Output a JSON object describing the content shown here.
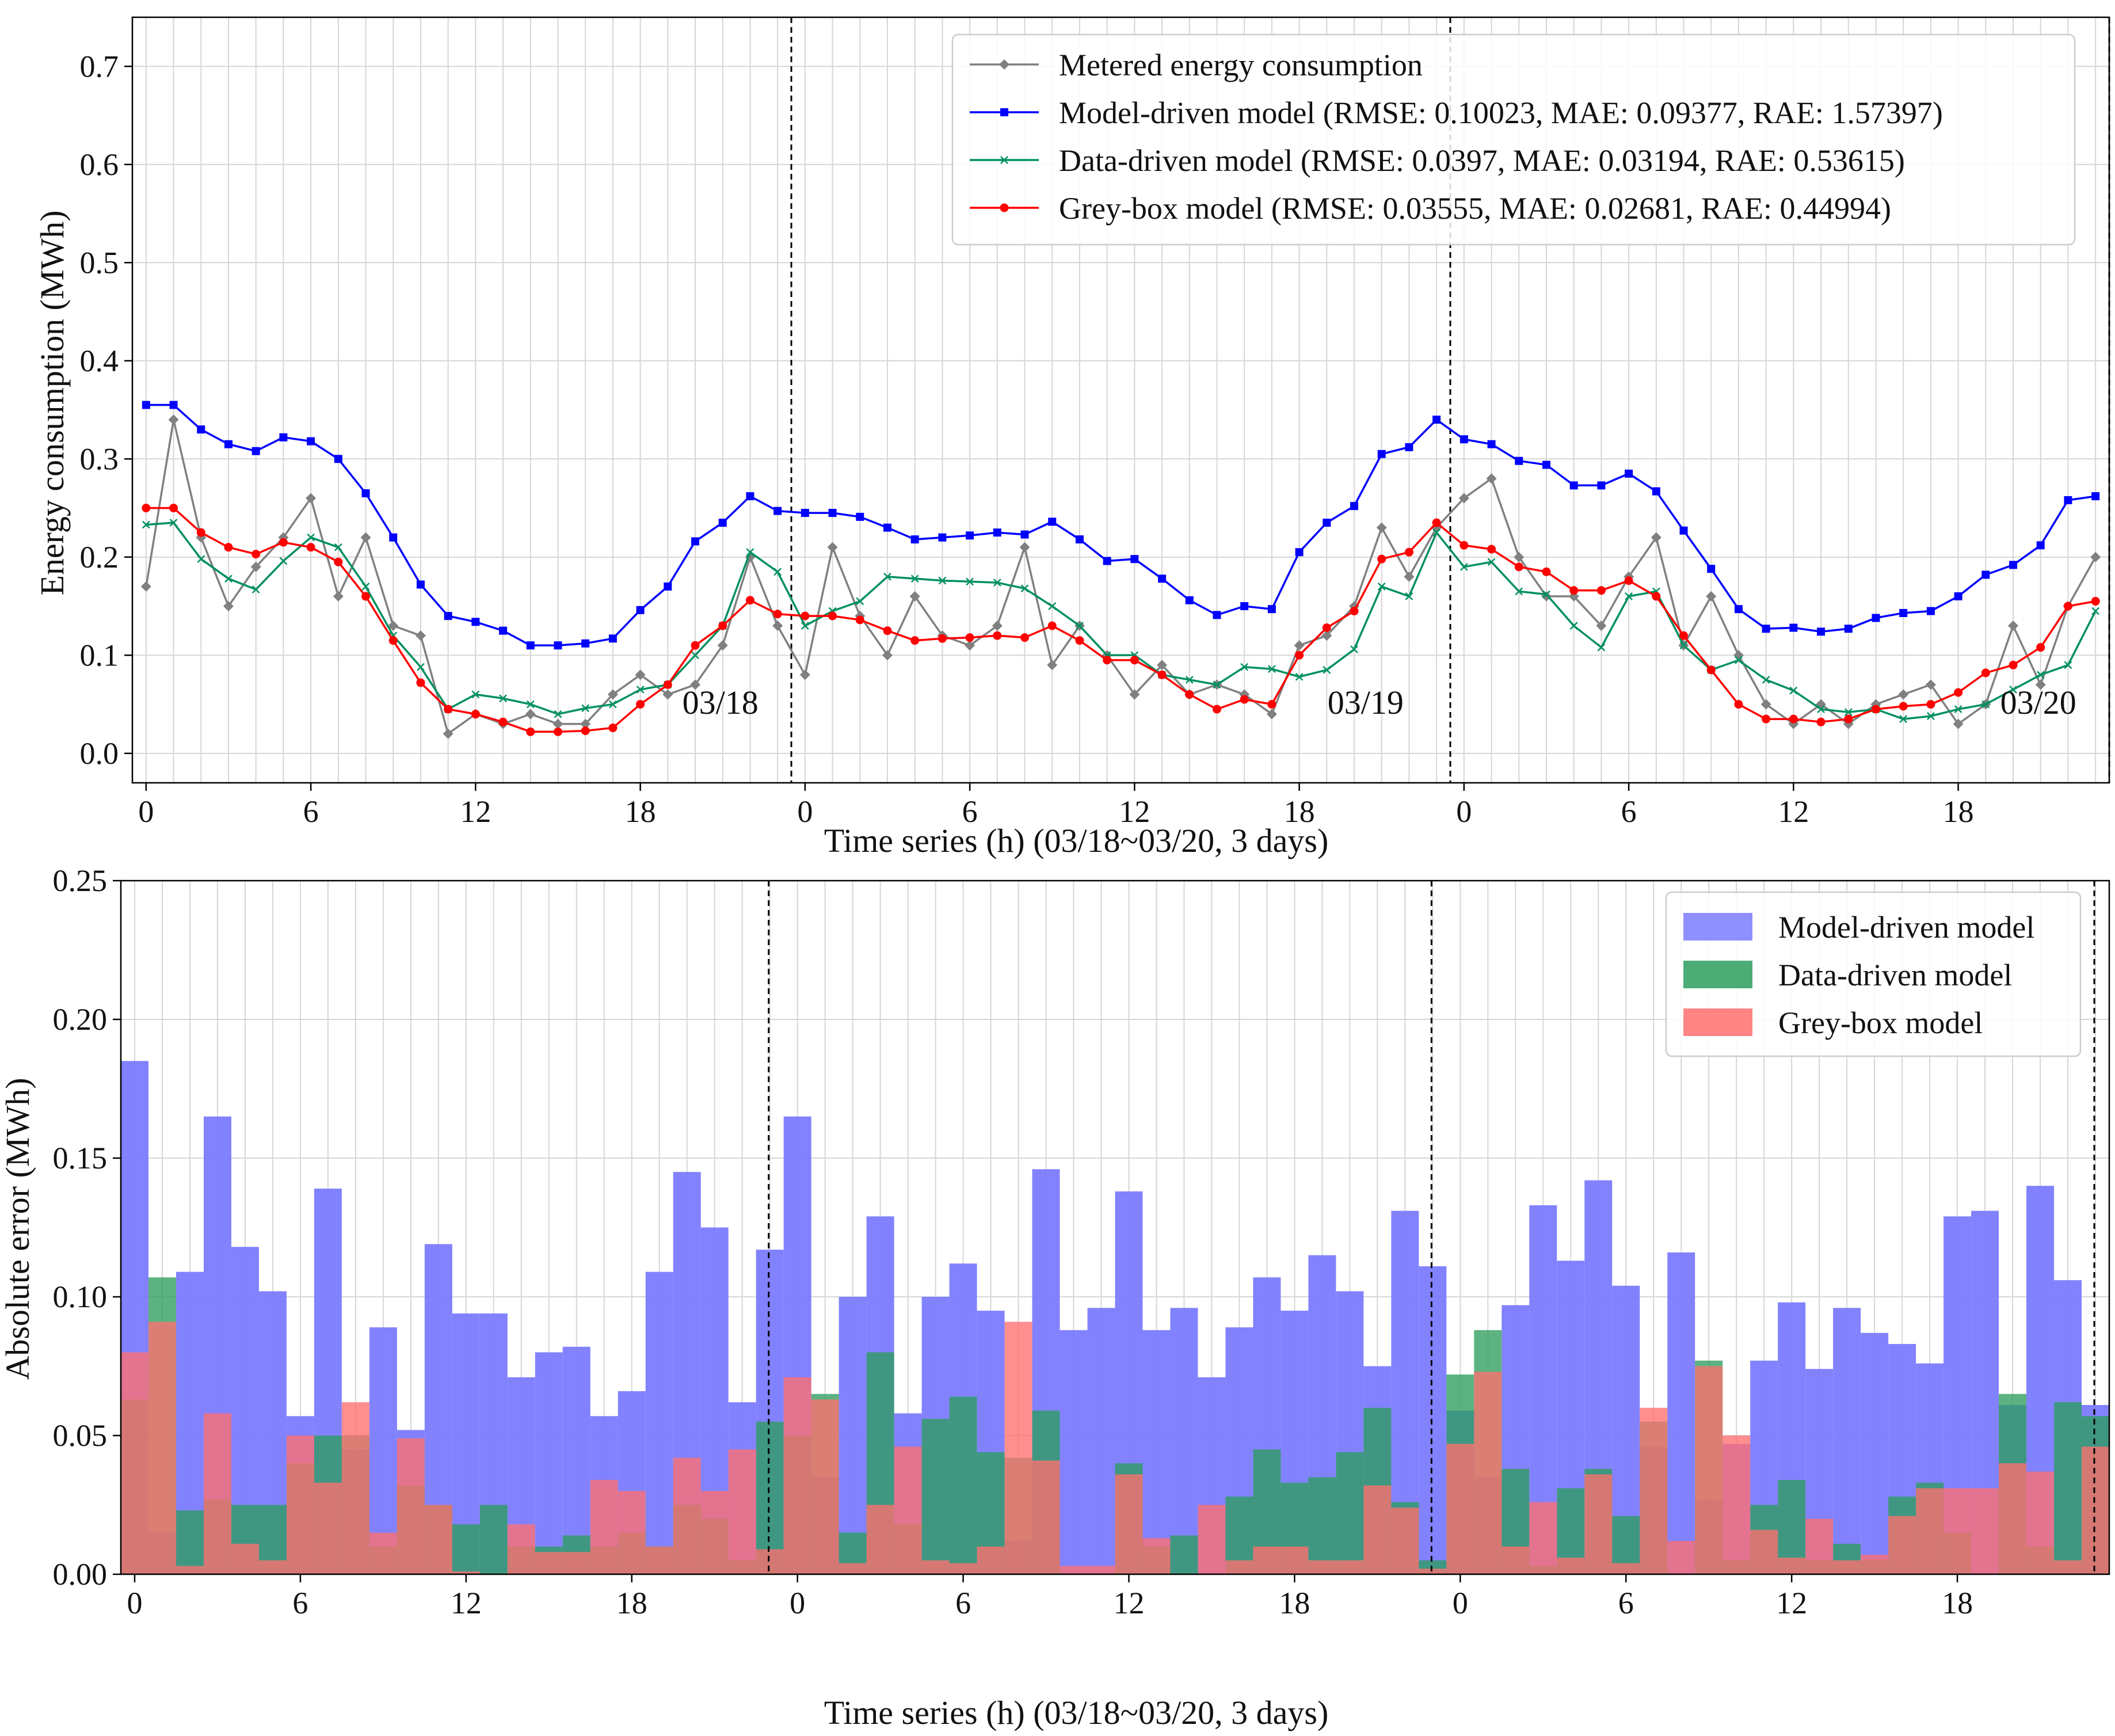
{
  "chart_data": [
    {
      "type": "line",
      "xlabel": "Time series (h) (03/18~03/20,  3 days)",
      "ylabel": "Energy consumption (MWh)",
      "ylim": [
        -0.03,
        0.75
      ],
      "yticks": [
        "0.0",
        "0.1",
        "0.2",
        "0.3",
        "0.4",
        "0.5",
        "0.6",
        "0.7"
      ],
      "xticks": [
        "0",
        "6",
        "12",
        "18",
        "0",
        "6",
        "12",
        "18",
        "0",
        "6",
        "12",
        "18"
      ],
      "day_labels": [
        "03/18",
        "03/19",
        "03/20"
      ],
      "grid": true,
      "legend_position": "top-right",
      "x": [
        0,
        1,
        2,
        3,
        4,
        5,
        6,
        7,
        8,
        9,
        10,
        11,
        12,
        13,
        14,
        15,
        16,
        17,
        18,
        19,
        20,
        21,
        22,
        23,
        24,
        25,
        26,
        27,
        28,
        29,
        30,
        31,
        32,
        33,
        34,
        35,
        36,
        37,
        38,
        39,
        40,
        41,
        42,
        43,
        44,
        45,
        46,
        47,
        48,
        49,
        50,
        51,
        52,
        53,
        54,
        55,
        56,
        57,
        58,
        59,
        60,
        61,
        62,
        63,
        64,
        65,
        66,
        67,
        68,
        69,
        70,
        71
      ],
      "series": [
        {
          "name": "Metered energy consumption",
          "color": "#808080",
          "marker": "diamond",
          "values": [
            0.17,
            0.34,
            0.22,
            0.15,
            0.19,
            0.22,
            0.26,
            0.16,
            0.22,
            0.13,
            0.12,
            0.02,
            0.04,
            0.03,
            0.04,
            0.03,
            0.03,
            0.06,
            0.08,
            0.06,
            0.07,
            0.11,
            0.2,
            0.13,
            0.08,
            0.21,
            0.14,
            0.1,
            0.16,
            0.12,
            0.11,
            0.13,
            0.21,
            0.09,
            0.13,
            0.1,
            0.06,
            0.09,
            0.06,
            0.07,
            0.06,
            0.04,
            0.11,
            0.12,
            0.15,
            0.23,
            0.18,
            0.23,
            0.26,
            0.28,
            0.2,
            0.16,
            0.16,
            0.13,
            0.18,
            0.22,
            0.11,
            0.16,
            0.1,
            0.05,
            0.03,
            0.05,
            0.03,
            0.05,
            0.06,
            0.07,
            0.03,
            0.05,
            0.13,
            0.07,
            0.15,
            0.2
          ]
        },
        {
          "name": "Model-driven model (RMSE: 0.10023, MAE: 0.09377, RAE: 1.57397)",
          "color": "#0000ff",
          "marker": "square",
          "values": [
            0.355,
            0.355,
            0.33,
            0.315,
            0.308,
            0.322,
            0.318,
            0.3,
            0.265,
            0.22,
            0.172,
            0.14,
            0.134,
            0.125,
            0.11,
            0.11,
            0.112,
            0.117,
            0.146,
            0.17,
            0.216,
            0.235,
            0.262,
            0.247,
            0.245,
            0.245,
            0.241,
            0.23,
            0.218,
            0.22,
            0.222,
            0.225,
            0.223,
            0.236,
            0.218,
            0.196,
            0.198,
            0.178,
            0.156,
            0.141,
            0.15,
            0.147,
            0.205,
            0.235,
            0.252,
            0.305,
            0.312,
            0.34,
            0.32,
            0.315,
            0.298,
            0.294,
            0.273,
            0.273,
            0.285,
            0.267,
            0.227,
            0.188,
            0.147,
            0.127,
            0.128,
            0.124,
            0.127,
            0.138,
            0.143,
            0.145,
            0.16,
            0.182,
            0.192,
            0.212,
            0.258,
            0.262
          ]
        },
        {
          "name": "Data-driven model (RMSE: 0.0397, MAE: 0.03194, RAE: 0.53615)",
          "color": "#009060",
          "marker": "x",
          "values": [
            0.233,
            0.235,
            0.198,
            0.178,
            0.167,
            0.196,
            0.22,
            0.21,
            0.17,
            0.12,
            0.088,
            0.045,
            0.06,
            0.056,
            0.05,
            0.04,
            0.046,
            0.05,
            0.065,
            0.07,
            0.1,
            0.13,
            0.205,
            0.185,
            0.13,
            0.145,
            0.155,
            0.18,
            0.178,
            0.176,
            0.175,
            0.174,
            0.168,
            0.15,
            0.13,
            0.1,
            0.1,
            0.08,
            0.075,
            0.07,
            0.088,
            0.086,
            0.078,
            0.085,
            0.106,
            0.17,
            0.16,
            0.225,
            0.19,
            0.195,
            0.165,
            0.162,
            0.13,
            0.108,
            0.16,
            0.165,
            0.11,
            0.085,
            0.095,
            0.075,
            0.064,
            0.045,
            0.042,
            0.045,
            0.035,
            0.038,
            0.045,
            0.05,
            0.065,
            0.08,
            0.09,
            0.145
          ]
        },
        {
          "name": "Grey-box model (RMSE: 0.03555, MAE: 0.02681, RAE: 0.44994)",
          "color": "#ff0000",
          "marker": "circle",
          "values": [
            0.25,
            0.25,
            0.225,
            0.21,
            0.203,
            0.215,
            0.21,
            0.195,
            0.16,
            0.115,
            0.072,
            0.045,
            0.04,
            0.032,
            0.022,
            0.022,
            0.023,
            0.026,
            0.05,
            0.07,
            0.11,
            0.13,
            0.156,
            0.142,
            0.14,
            0.14,
            0.136,
            0.125,
            0.115,
            0.117,
            0.118,
            0.12,
            0.118,
            0.13,
            0.115,
            0.095,
            0.095,
            0.08,
            0.06,
            0.045,
            0.055,
            0.05,
            0.1,
            0.128,
            0.145,
            0.198,
            0.205,
            0.235,
            0.212,
            0.208,
            0.19,
            0.185,
            0.166,
            0.166,
            0.176,
            0.16,
            0.12,
            0.085,
            0.05,
            0.035,
            0.035,
            0.032,
            0.035,
            0.045,
            0.048,
            0.05,
            0.062,
            0.082,
            0.09,
            0.108,
            0.15,
            0.155
          ]
        }
      ]
    },
    {
      "type": "bar",
      "xlabel": "Time series (h) (03/18~03/20,  3 days)",
      "ylabel": "Absolute error (MWh)",
      "ylim": [
        0,
        0.25
      ],
      "yticks": [
        "0.00",
        "0.05",
        "0.10",
        "0.15",
        "0.20",
        "0.25"
      ],
      "xticks": [
        "0",
        "6",
        "12",
        "18",
        "0",
        "6",
        "12",
        "18",
        "0",
        "6",
        "12",
        "18"
      ],
      "grid": true,
      "legend_position": "top-right",
      "series": [
        {
          "name": "Model-driven model",
          "color": "#7b7bff",
          "values": [
            0.185,
            0.015,
            0.109,
            0.165,
            0.118,
            0.102,
            0.057,
            0.139,
            0.045,
            0.089,
            0.052,
            0.119,
            0.094,
            0.094,
            0.071,
            0.08,
            0.082,
            0.057,
            0.066,
            0.109,
            0.145,
            0.125,
            0.062,
            0.117,
            0.165,
            0.035,
            0.1,
            0.129,
            0.058,
            0.1,
            0.112,
            0.095,
            0.012,
            0.146,
            0.088,
            0.096,
            0.138,
            0.088,
            0.096,
            0.071,
            0.089,
            0.107,
            0.095,
            0.115,
            0.102,
            0.075,
            0.131,
            0.111,
            0.059,
            0.035,
            0.097,
            0.133,
            0.113,
            0.142,
            0.104,
            0.046,
            0.116,
            0.027,
            0.047,
            0.077,
            0.098,
            0.074,
            0.096,
            0.087,
            0.083,
            0.076,
            0.129,
            0.131,
            0.061,
            0.14,
            0.106,
            0.061
          ]
        },
        {
          "name": "Data-driven model",
          "color": "#2e9e5e",
          "values": [
            0.063,
            0.107,
            0.023,
            0.027,
            0.025,
            0.025,
            0.04,
            0.05,
            0.05,
            0.01,
            0.032,
            0.025,
            0.018,
            0.025,
            0.01,
            0.01,
            0.014,
            0.01,
            0.015,
            0.01,
            0.025,
            0.02,
            0.005,
            0.055,
            0.05,
            0.065,
            0.015,
            0.08,
            0.018,
            0.056,
            0.064,
            0.044,
            0.042,
            0.059,
            0.0,
            0.0,
            0.04,
            0.01,
            0.014,
            0.0,
            0.028,
            0.045,
            0.033,
            0.035,
            0.044,
            0.06,
            0.026,
            0.005,
            0.072,
            0.088,
            0.038,
            0.003,
            0.031,
            0.038,
            0.021,
            0.055,
            0.0,
            0.077,
            0.005,
            0.025,
            0.034,
            0.005,
            0.011,
            0.005,
            0.028,
            0.033,
            0.015,
            0.0,
            0.065,
            0.01,
            0.062,
            0.057
          ]
        },
        {
          "name": "Grey-box model",
          "color": "#ff7070",
          "values": [
            0.08,
            0.091,
            0.003,
            0.058,
            0.011,
            0.005,
            0.05,
            0.033,
            0.062,
            0.015,
            0.049,
            0.025,
            0.001,
            0.0,
            0.018,
            0.008,
            0.008,
            0.034,
            0.03,
            0.01,
            0.042,
            0.03,
            0.045,
            0.009,
            0.071,
            0.063,
            0.004,
            0.025,
            0.046,
            0.005,
            0.004,
            0.01,
            0.091,
            0.041,
            0.003,
            0.003,
            0.036,
            0.013,
            0.0,
            0.025,
            0.005,
            0.01,
            0.01,
            0.005,
            0.005,
            0.032,
            0.024,
            0.002,
            0.047,
            0.073,
            0.01,
            0.026,
            0.006,
            0.036,
            0.004,
            0.06,
            0.012,
            0.075,
            0.05,
            0.016,
            0.006,
            0.02,
            0.005,
            0.007,
            0.021,
            0.031,
            0.031,
            0.031,
            0.04,
            0.037,
            0.005,
            0.046
          ]
        }
      ]
    }
  ]
}
